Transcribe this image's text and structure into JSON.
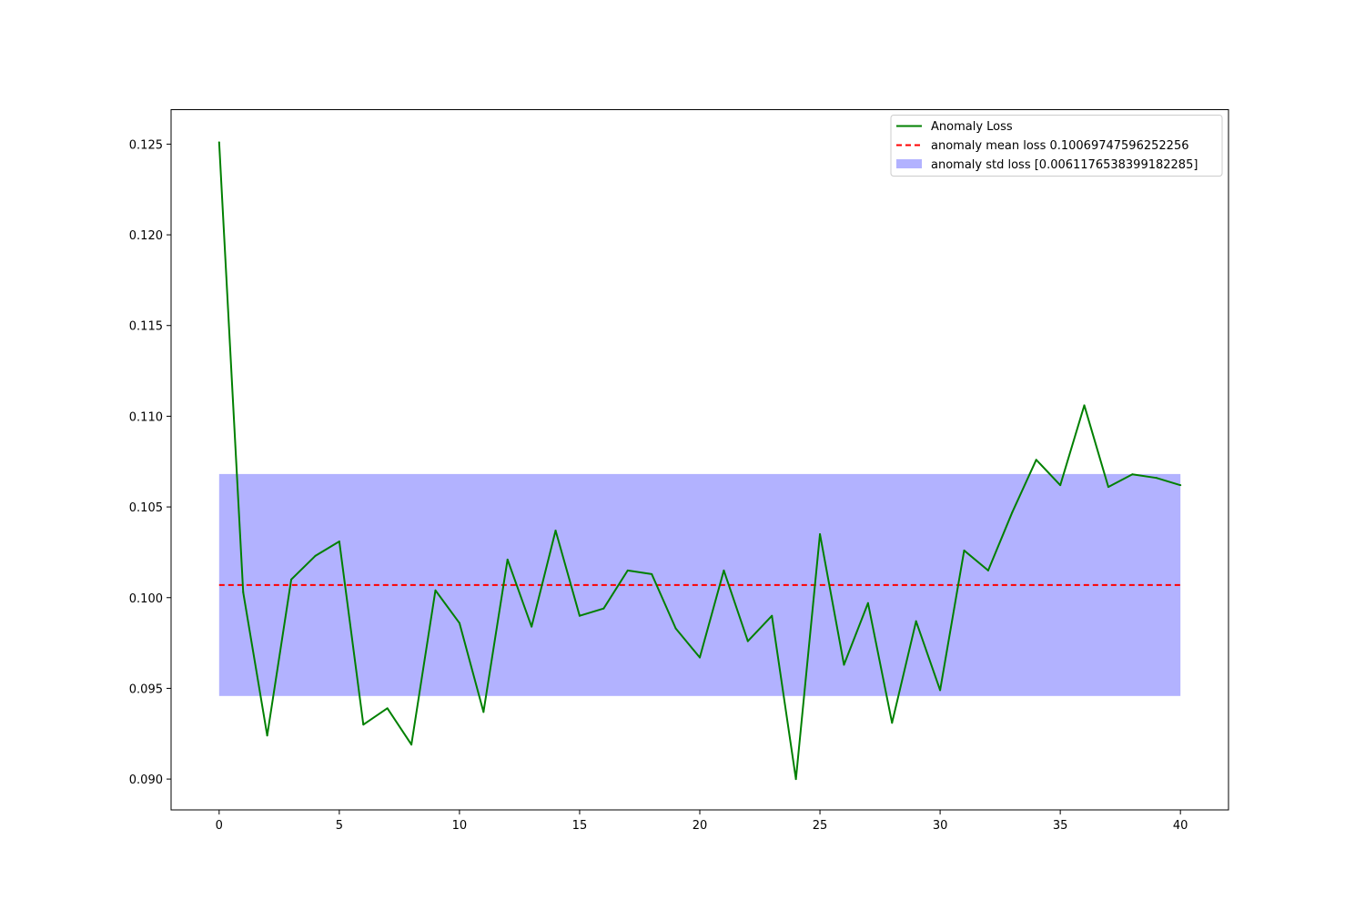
{
  "chart_data": {
    "type": "line",
    "title": "",
    "xlabel": "",
    "ylabel": "",
    "xlim": [
      -2,
      42
    ],
    "ylim": [
      0.0883,
      0.1269
    ],
    "x_ticks": [
      0,
      5,
      10,
      15,
      20,
      25,
      30,
      35,
      40
    ],
    "x_tick_labels": [
      "0",
      "5",
      "10",
      "15",
      "20",
      "25",
      "30",
      "35",
      "40"
    ],
    "y_ticks": [
      0.09,
      0.095,
      0.1,
      0.105,
      0.11,
      0.115,
      0.12,
      0.125
    ],
    "y_tick_labels": [
      "0.090",
      "0.095",
      "0.100",
      "0.105",
      "0.110",
      "0.115",
      "0.120",
      "0.125"
    ],
    "grid": false,
    "legend_position": "top-right",
    "series": [
      {
        "name": "Anomaly Loss",
        "kind": "line",
        "color": "#008000",
        "x": [
          0,
          1,
          2,
          3,
          4,
          5,
          6,
          7,
          8,
          9,
          10,
          11,
          12,
          13,
          14,
          15,
          16,
          17,
          18,
          19,
          20,
          21,
          22,
          23,
          24,
          25,
          26,
          27,
          28,
          29,
          30,
          31,
          32,
          33,
          34,
          35,
          36,
          37,
          38,
          39,
          40
        ],
        "values": [
          0.1251,
          0.1003,
          0.0924,
          0.101,
          0.1023,
          0.1031,
          0.093,
          0.0939,
          0.0919,
          0.1004,
          0.0986,
          0.0937,
          0.1021,
          0.0984,
          0.1037,
          0.099,
          0.0994,
          0.1015,
          0.1013,
          0.0983,
          0.0967,
          0.1015,
          0.0976,
          0.099,
          0.09,
          0.1035,
          0.0963,
          0.0997,
          0.0931,
          0.0987,
          0.0949,
          0.1026,
          0.1015,
          0.1047,
          0.1076,
          0.1062,
          0.1106,
          0.1061,
          0.1068,
          0.1066,
          0.1062
        ]
      },
      {
        "name": "anomaly mean loss 0.10069747596252256",
        "kind": "hline",
        "color": "#ff0000",
        "y": 0.10069747596252256,
        "x_range": [
          0,
          40
        ]
      },
      {
        "name": "anomaly std loss [0.0061176538399182285]",
        "kind": "band",
        "color": "#b2b2ff",
        "y_low": 0.09457982212260432,
        "y_high": 0.10681512980244079,
        "x_range": [
          0,
          40
        ]
      }
    ]
  }
}
